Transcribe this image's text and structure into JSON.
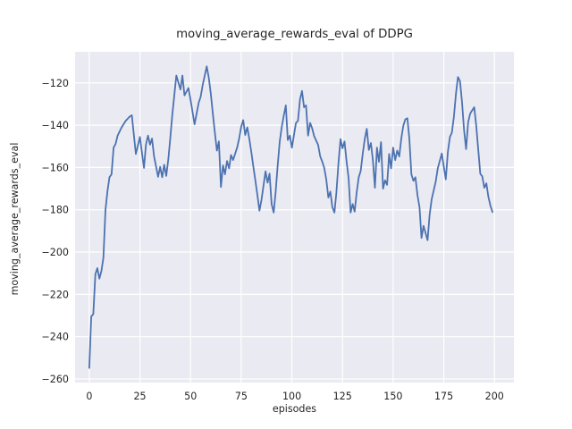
{
  "chart_data": {
    "type": "line",
    "title": "moving_average_rewards_eval of DDPG",
    "xlabel": "episodes",
    "ylabel": "moving_average_rewards_eval",
    "xlim": [
      -7,
      209.6
    ],
    "ylim": [
      -261.7,
      -105.3
    ],
    "xticks": [
      0,
      25,
      50,
      75,
      100,
      125,
      150,
      175,
      200
    ],
    "xtick_labels": [
      "0",
      "25",
      "50",
      "75",
      "100",
      "125",
      "150",
      "175",
      "200"
    ],
    "yticks": [
      -120,
      -140,
      -160,
      -180,
      -200,
      -220,
      -240,
      -260
    ],
    "ytick_labels": [
      "−120",
      "−140",
      "−160",
      "−180",
      "−200",
      "−220",
      "−240",
      "−260"
    ],
    "grid": true,
    "legend_position": "none",
    "style": "seaborn-darkgrid",
    "colors": {
      "line": "#4c72b0",
      "plot_bg": "#eaeaf2",
      "grid": "#ffffff",
      "text": "#262626",
      "figure_bg": "#ffffff"
    },
    "series": [
      {
        "name": "moving_average_rewards_eval",
        "points": [
          [
            0,
            -254.8
          ],
          [
            1,
            -230.5
          ],
          [
            2,
            -229.3
          ],
          [
            3,
            -210.5
          ],
          [
            4,
            -207.6
          ],
          [
            5,
            -212.6
          ],
          [
            6,
            -208.9
          ],
          [
            7,
            -202.7
          ],
          [
            8,
            -180.2
          ],
          [
            9,
            -171.0
          ],
          [
            10,
            -164.6
          ],
          [
            11,
            -163.2
          ],
          [
            12,
            -150.6
          ],
          [
            13,
            -148.9
          ],
          [
            14,
            -144.9
          ],
          [
            16,
            -141.0
          ],
          [
            18,
            -137.9
          ],
          [
            20,
            -135.9
          ],
          [
            21,
            -135.3
          ],
          [
            23,
            -153.6
          ],
          [
            25,
            -145.6
          ],
          [
            27,
            -160.2
          ],
          [
            28,
            -149.2
          ],
          [
            29,
            -144.9
          ],
          [
            30,
            -149.2
          ],
          [
            31,
            -146.3
          ],
          [
            32,
            -154.8
          ],
          [
            34,
            -164.4
          ],
          [
            35,
            -159.7
          ],
          [
            36,
            -164.6
          ],
          [
            37,
            -158.7
          ],
          [
            38,
            -164.0
          ],
          [
            39,
            -156.2
          ],
          [
            40,
            -146.3
          ],
          [
            41,
            -135.0
          ],
          [
            43,
            -116.5
          ],
          [
            45,
            -123.1
          ],
          [
            46,
            -116.5
          ],
          [
            47,
            -125.9
          ],
          [
            49,
            -122.4
          ],
          [
            50,
            -128.0
          ],
          [
            52,
            -139.6
          ],
          [
            54,
            -129.4
          ],
          [
            55,
            -126.6
          ],
          [
            56,
            -121.0
          ],
          [
            58,
            -112.2
          ],
          [
            59,
            -117.5
          ],
          [
            60,
            -125.2
          ],
          [
            61,
            -134.4
          ],
          [
            62,
            -143.5
          ],
          [
            63,
            -152.0
          ],
          [
            64,
            -147.7
          ],
          [
            65,
            -169.2
          ],
          [
            66,
            -159.0
          ],
          [
            67,
            -163.2
          ],
          [
            68,
            -156.9
          ],
          [
            69,
            -160.4
          ],
          [
            70,
            -154.1
          ],
          [
            71,
            -156.5
          ],
          [
            73,
            -150.6
          ],
          [
            74,
            -146.3
          ],
          [
            75,
            -140.7
          ],
          [
            76,
            -137.6
          ],
          [
            77,
            -144.6
          ],
          [
            78,
            -141.0
          ],
          [
            79,
            -146.3
          ],
          [
            80,
            -152.7
          ],
          [
            81,
            -159.7
          ],
          [
            82,
            -166.1
          ],
          [
            83,
            -173.1
          ],
          [
            84,
            -180.4
          ],
          [
            85,
            -175.2
          ],
          [
            87,
            -161.8
          ],
          [
            88,
            -167.2
          ],
          [
            89,
            -162.9
          ],
          [
            90,
            -177.3
          ],
          [
            91,
            -181.3
          ],
          [
            92,
            -171.7
          ],
          [
            93,
            -159.0
          ],
          [
            94,
            -147.7
          ],
          [
            95,
            -141.0
          ],
          [
            96,
            -135.5
          ],
          [
            97,
            -130.6
          ],
          [
            98,
            -147.0
          ],
          [
            99,
            -144.9
          ],
          [
            100,
            -150.6
          ],
          [
            101,
            -144.9
          ],
          [
            102,
            -139.0
          ],
          [
            103,
            -137.9
          ],
          [
            104,
            -128.0
          ],
          [
            105,
            -123.8
          ],
          [
            106,
            -131.5
          ],
          [
            107,
            -130.6
          ],
          [
            108,
            -144.9
          ],
          [
            109,
            -138.9
          ],
          [
            110,
            -141.4
          ],
          [
            111,
            -145.2
          ],
          [
            113,
            -149.4
          ],
          [
            114,
            -154.8
          ],
          [
            115,
            -157.3
          ],
          [
            116,
            -160.2
          ],
          [
            117,
            -165.8
          ],
          [
            118,
            -174.2
          ],
          [
            119,
            -171.4
          ],
          [
            120,
            -178.8
          ],
          [
            121,
            -181.3
          ],
          [
            122,
            -171.7
          ],
          [
            123,
            -157.9
          ],
          [
            124,
            -146.6
          ],
          [
            125,
            -150.9
          ],
          [
            126,
            -147.7
          ],
          [
            127,
            -157.3
          ],
          [
            128,
            -164.9
          ],
          [
            129,
            -181.3
          ],
          [
            130,
            -177.3
          ],
          [
            131,
            -180.9
          ],
          [
            132,
            -171.7
          ],
          [
            133,
            -164.6
          ],
          [
            134,
            -161.6
          ],
          [
            135,
            -153.4
          ],
          [
            136,
            -146.3
          ],
          [
            137,
            -141.7
          ],
          [
            138,
            -151.7
          ],
          [
            139,
            -148.4
          ],
          [
            140,
            -156.5
          ],
          [
            141,
            -169.6
          ],
          [
            142,
            -150.6
          ],
          [
            143,
            -157.3
          ],
          [
            144,
            -148.0
          ],
          [
            145,
            -170.0
          ],
          [
            146,
            -166.1
          ],
          [
            147,
            -168.2
          ],
          [
            148,
            -153.6
          ],
          [
            149,
            -160.4
          ],
          [
            150,
            -150.6
          ],
          [
            151,
            -156.5
          ],
          [
            152,
            -152.0
          ],
          [
            153,
            -154.8
          ],
          [
            154,
            -146.3
          ],
          [
            155,
            -140.4
          ],
          [
            156,
            -137.2
          ],
          [
            157,
            -136.7
          ],
          [
            158,
            -146.3
          ],
          [
            159,
            -163.2
          ],
          [
            160,
            -166.3
          ],
          [
            161,
            -164.6
          ],
          [
            162,
            -173.1
          ],
          [
            163,
            -178.8
          ],
          [
            164,
            -193.3
          ],
          [
            165,
            -187.6
          ],
          [
            167,
            -194.4
          ],
          [
            168,
            -182.3
          ],
          [
            169,
            -175.0
          ],
          [
            171,
            -166.7
          ],
          [
            172,
            -160.4
          ],
          [
            174,
            -153.4
          ],
          [
            176,
            -165.6
          ],
          [
            177,
            -152.7
          ],
          [
            178,
            -145.6
          ],
          [
            179,
            -143.5
          ],
          [
            180,
            -135.8
          ],
          [
            181,
            -125.0
          ],
          [
            182,
            -117.2
          ],
          [
            183,
            -119.2
          ],
          [
            184,
            -129.3
          ],
          [
            185,
            -142.1
          ],
          [
            186,
            -151.3
          ],
          [
            187,
            -138.6
          ],
          [
            188,
            -134.6
          ],
          [
            189,
            -133.0
          ],
          [
            190,
            -131.5
          ],
          [
            191,
            -140.0
          ],
          [
            192,
            -151.5
          ],
          [
            193,
            -163.0
          ],
          [
            194,
            -164.2
          ],
          [
            195,
            -169.6
          ],
          [
            196,
            -167.5
          ],
          [
            197,
            -173.8
          ],
          [
            198,
            -178.0
          ],
          [
            199,
            -181.1
          ]
        ]
      }
    ]
  }
}
